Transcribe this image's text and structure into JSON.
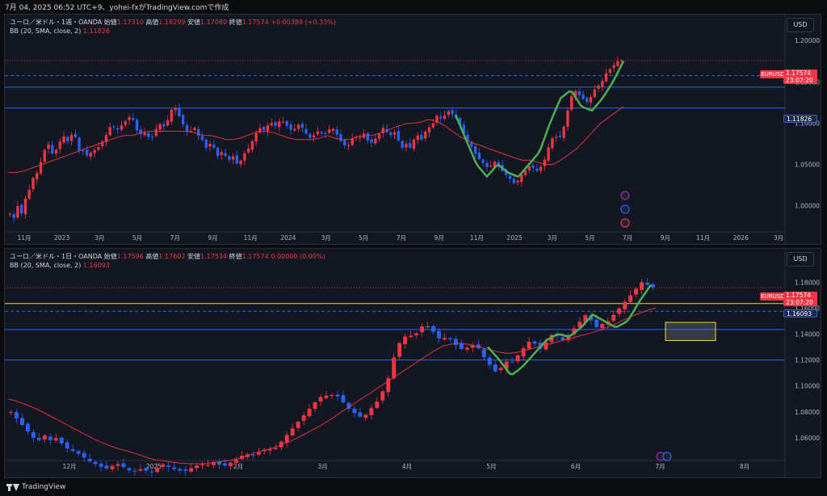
{
  "header": {
    "text": "7月 04, 2025 06:52 UTC+9、yohei-fxがTradingView.comで作成"
  },
  "footer": {
    "brand": "TradingView"
  },
  "colors": {
    "up": "#f23645",
    "down": "#2962ff",
    "bb_basis": "#f23645",
    "hline_blue": "#2962ff",
    "hline_yellow": "#f5d442",
    "price_label": "#f23645",
    "swing_line": "#4caf50",
    "background": "#131722"
  },
  "pane_top": {
    "currency_button": "USD",
    "legend": {
      "symbol": "ユーロ／米ドル・1週・OANDA",
      "open_label": "始値",
      "open": "1.17310",
      "high_label": "高値",
      "high": "1.18299",
      "low_label": "安値",
      "low": "1.17080",
      "close_label": "終値",
      "close": "1.17574",
      "change": "+0.00389 (+0.33%)",
      "bb_label": "BB (20, SMA, close, 2)",
      "bb_value": "1.11826"
    },
    "price_tag": {
      "symbol": "EURUSD",
      "price": "1.17574",
      "countdown": "23:07:20"
    },
    "level_tag": "1.11826",
    "y_ticks": [
      "1.20000",
      "1.15000",
      "1.10000",
      "1.05000",
      "1.00000"
    ],
    "x_ticks": [
      "11月",
      "2023",
      "3月",
      "5月",
      "7月",
      "9月",
      "11月",
      "2024",
      "3月",
      "5月",
      "7月",
      "9月",
      "11月",
      "2025",
      "3月",
      "5月",
      "7月",
      "9月",
      "11月",
      "2026",
      "3月"
    ]
  },
  "pane_bottom": {
    "currency_button": "USD",
    "legend": {
      "symbol": "ユーロ／米ドル・1日・OANDA",
      "open_label": "始値",
      "open": "1.17596",
      "high_label": "高値",
      "high": "1.17602",
      "low_label": "安値",
      "low": "1.17534",
      "close_label": "終値",
      "close": "1.17574",
      "change": "0.00000 (0.00%)",
      "bb_label": "BB (20, SMA, close, 2)",
      "bb_value": "1.16093"
    },
    "price_tag": {
      "symbol": "EURUSD",
      "price": "1.17574",
      "countdown": "23:07:20"
    },
    "level_tag": "1.16093",
    "y_ticks": [
      "1.18000",
      "1.16000",
      "1.14000",
      "1.12000",
      "1.10000",
      "1.08000",
      "1.06000"
    ],
    "x_ticks": [
      "12月",
      "2025",
      "2月",
      "3月",
      "4月",
      "5月",
      "6月",
      "7月",
      "8月"
    ]
  },
  "chart_data": [
    {
      "type": "candlestick",
      "title": "ユーロ／米ドル・1週・OANDA",
      "ylim": [
        0.975,
        1.21
      ],
      "hlines": [
        1.1575,
        1.1435,
        1.11826
      ],
      "last_close": 1.17574,
      "close_path": [
        0.99,
        0.985,
        1.0,
        0.99,
        1.01,
        1.02,
        1.035,
        1.04,
        1.055,
        1.07,
        1.075,
        1.06,
        1.07,
        1.08,
        1.085,
        1.075,
        1.09,
        1.08,
        1.06,
        1.07,
        1.055,
        1.07,
        1.065,
        1.075,
        1.08,
        1.09,
        1.1,
        1.09,
        1.095,
        1.1,
        1.105,
        1.11,
        1.095,
        1.085,
        1.09,
        1.085,
        1.08,
        1.09,
        1.1,
        1.095,
        1.1,
        1.115,
        1.12,
        1.11,
        1.1,
        1.09,
        1.09,
        1.095,
        1.085,
        1.08,
        1.07,
        1.075,
        1.07,
        1.06,
        1.065,
        1.06,
        1.055,
        1.06,
        1.05,
        1.055,
        1.065,
        1.07,
        1.08,
        1.09,
        1.095,
        1.09,
        1.1,
        1.1,
        1.095,
        1.105,
        1.1,
        1.095,
        1.09,
        1.095,
        1.1,
        1.09,
        1.085,
        1.08,
        1.09,
        1.09,
        1.085,
        1.09,
        1.095,
        1.09,
        1.08,
        1.075,
        1.07,
        1.08,
        1.085,
        1.08,
        1.09,
        1.08,
        1.075,
        1.08,
        1.085,
        1.095,
        1.09,
        1.085,
        1.09,
        1.08,
        1.07,
        1.075,
        1.07,
        1.08,
        1.085,
        1.08,
        1.09,
        1.095,
        1.1,
        1.11,
        1.105,
        1.11,
        1.115,
        1.11,
        1.105,
        1.095,
        1.085,
        1.075,
        1.07,
        1.06,
        1.055,
        1.05,
        1.045,
        1.05,
        1.055,
        1.045,
        1.04,
        1.035,
        1.03,
        1.025,
        1.035,
        1.04,
        1.045,
        1.05,
        1.04,
        1.045,
        1.05,
        1.065,
        1.08,
        1.085,
        1.08,
        1.09,
        1.11,
        1.13,
        1.14,
        1.135,
        1.13,
        1.125,
        1.13,
        1.14,
        1.145,
        1.15,
        1.16,
        1.165,
        1.17,
        1.175,
        1.176
      ],
      "bb_basis_path": [
        1.04,
        1.04,
        1.045,
        1.05,
        1.055,
        1.06,
        1.065,
        1.07,
        1.075,
        1.08,
        1.085,
        1.085,
        1.09,
        1.09,
        1.09,
        1.09,
        1.09,
        1.085,
        1.085,
        1.08,
        1.08,
        1.085,
        1.09,
        1.09,
        1.085,
        1.08,
        1.08,
        1.08,
        1.085,
        1.08,
        1.08,
        1.085,
        1.085,
        1.09,
        1.095,
        1.1,
        1.1,
        1.105,
        1.1,
        1.09,
        1.08,
        1.075,
        1.07,
        1.065,
        1.06,
        1.055,
        1.055,
        1.05,
        1.05,
        1.06,
        1.07,
        1.085,
        1.1,
        1.11,
        1.12
      ],
      "swing_path": [
        1.11,
        1.08,
        1.05,
        1.035,
        1.05,
        1.04,
        1.035,
        1.05,
        1.065,
        1.1,
        1.13,
        1.14,
        1.12,
        1.115,
        1.13,
        1.15,
        1.175
      ]
    },
    {
      "type": "candlestick",
      "title": "ユーロ／米ドル・1日・OANDA",
      "ylim": [
        1.045,
        1.192
      ],
      "hlines": [
        1.1575,
        1.1435,
        1.12
      ],
      "hlines_yellow": [
        1.1635
      ],
      "last_close": 1.17574,
      "rect_zone": {
        "y_top": 1.149,
        "y_bottom": 1.135
      },
      "close_path": [
        1.08,
        1.075,
        1.07,
        1.065,
        1.06,
        1.058,
        1.062,
        1.058,
        1.06,
        1.056,
        1.052,
        1.05,
        1.048,
        1.045,
        1.042,
        1.04,
        1.038,
        1.036,
        1.038,
        1.04,
        1.038,
        1.035,
        1.034,
        1.036,
        1.035,
        1.033,
        1.036,
        1.04,
        1.038,
        1.036,
        1.035,
        1.034,
        1.036,
        1.038,
        1.04,
        1.038,
        1.042,
        1.04,
        1.038,
        1.04,
        1.042,
        1.045,
        1.048,
        1.046,
        1.048,
        1.05,
        1.052,
        1.05,
        1.055,
        1.06,
        1.065,
        1.07,
        1.075,
        1.08,
        1.085,
        1.09,
        1.093,
        1.092,
        1.094,
        1.09,
        1.085,
        1.08,
        1.078,
        1.075,
        1.08,
        1.085,
        1.09,
        1.1,
        1.11,
        1.13,
        1.135,
        1.14,
        1.138,
        1.142,
        1.148,
        1.145,
        1.14,
        1.135,
        1.138,
        1.135,
        1.13,
        1.128,
        1.13,
        1.132,
        1.128,
        1.12,
        1.115,
        1.11,
        1.115,
        1.12,
        1.118,
        1.125,
        1.13,
        1.135,
        1.132,
        1.128,
        1.135,
        1.14,
        1.138,
        1.135,
        1.14,
        1.145,
        1.15,
        1.155,
        1.15,
        1.145,
        1.148,
        1.15,
        1.155,
        1.16,
        1.165,
        1.17,
        1.175,
        1.18,
        1.178,
        1.176
      ],
      "bb_basis_path": [
        1.09,
        1.088,
        1.085,
        1.082,
        1.078,
        1.074,
        1.07,
        1.066,
        1.062,
        1.058,
        1.055,
        1.052,
        1.05,
        1.048,
        1.045,
        1.043,
        1.042,
        1.041,
        1.04,
        1.04,
        1.04,
        1.041,
        1.042,
        1.043,
        1.045,
        1.048,
        1.05,
        1.052,
        1.055,
        1.058,
        1.062,
        1.066,
        1.07,
        1.075,
        1.08,
        1.085,
        1.09,
        1.095,
        1.1,
        1.105,
        1.11,
        1.115,
        1.12,
        1.125,
        1.13,
        1.132,
        1.133,
        1.132,
        1.13,
        1.128,
        1.126,
        1.125,
        1.126,
        1.128,
        1.13,
        1.132,
        1.134,
        1.136,
        1.138,
        1.14,
        1.142,
        1.145,
        1.148,
        1.152,
        1.155,
        1.158,
        1.16
      ],
      "swing_path": [
        1.13,
        1.12,
        1.108,
        1.115,
        1.125,
        1.135,
        1.14,
        1.138,
        1.145,
        1.155,
        1.15,
        1.145,
        1.15,
        1.165,
        1.178
      ]
    }
  ]
}
